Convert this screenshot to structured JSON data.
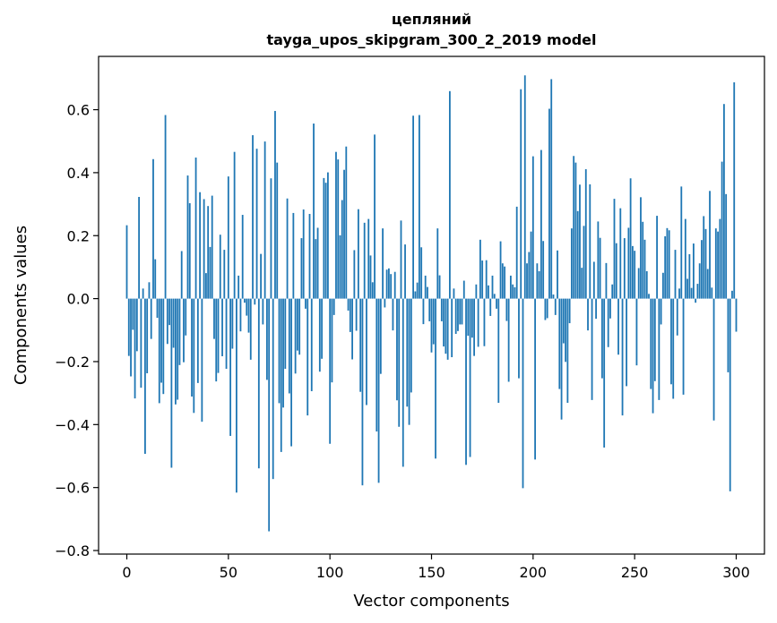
{
  "chart_data": {
    "type": "bar",
    "title": "цепляний",
    "subtitle": "tayga_upos_skipgram_300_2_2019 model",
    "xlabel": "Vector components",
    "ylabel": "Components values",
    "xlim": [
      -13.9,
      313.9
    ],
    "ylim": [
      -0.8113,
      0.7693
    ],
    "xticks": [
      0,
      50,
      100,
      150,
      200,
      250,
      300
    ],
    "yticks": [
      -0.8,
      -0.6,
      -0.4,
      -0.2,
      0.0,
      0.2,
      0.4,
      0.6
    ],
    "ytick_labels": [
      "−0.8",
      "−0.6",
      "−0.4",
      "−0.2",
      "0.0",
      "0.2",
      "0.4",
      "0.6"
    ],
    "bar_color": "#1f77b4",
    "values": [
      0.233,
      -0.182,
      -0.247,
      -0.099,
      -0.317,
      -0.167,
      0.323,
      -0.283,
      0.032,
      -0.493,
      -0.237,
      0.052,
      -0.128,
      0.443,
      0.125,
      -0.061,
      -0.332,
      -0.267,
      -0.303,
      0.583,
      -0.144,
      -0.084,
      -0.537,
      -0.156,
      -0.336,
      -0.321,
      -0.211,
      0.151,
      -0.202,
      -0.117,
      0.391,
      0.303,
      -0.311,
      -0.363,
      0.448,
      -0.268,
      0.338,
      -0.391,
      0.316,
      0.081,
      0.294,
      0.164,
      0.327,
      -0.128,
      -0.263,
      -0.236,
      0.203,
      -0.183,
      0.155,
      -0.223,
      0.388,
      -0.436,
      -0.159,
      0.466,
      -0.616,
      0.073,
      -0.104,
      0.266,
      -0.013,
      -0.054,
      -0.108,
      -0.194,
      0.519,
      -0.019,
      0.476,
      -0.539,
      0.142,
      -0.082,
      0.499,
      -0.258,
      -0.739,
      0.382,
      -0.573,
      0.596,
      0.432,
      -0.332,
      -0.487,
      -0.346,
      -0.223,
      0.318,
      -0.301,
      -0.469,
      0.272,
      -0.238,
      -0.165,
      -0.178,
      0.192,
      0.283,
      -0.032,
      -0.371,
      0.269,
      -0.294,
      0.556,
      0.189,
      0.225,
      -0.232,
      -0.191,
      0.383,
      0.368,
      0.401,
      -0.461,
      -0.266,
      -0.052,
      0.466,
      0.442,
      0.201,
      0.313,
      0.409,
      0.483,
      -0.038,
      -0.106,
      -0.193,
      0.154,
      -0.102,
      0.284,
      -0.296,
      -0.593,
      0.241,
      -0.338,
      0.253,
      0.137,
      0.052,
      0.521,
      -0.422,
      -0.585,
      -0.239,
      0.223,
      -0.028,
      0.092,
      0.096,
      0.078,
      -0.101,
      0.085,
      -0.323,
      -0.407,
      0.248,
      -0.534,
      0.172,
      -0.343,
      -0.401,
      -0.298,
      0.581,
      0.023,
      0.051,
      0.583,
      0.163,
      -0.081,
      0.073,
      0.037,
      -0.072,
      -0.171,
      -0.145,
      -0.508,
      0.223,
      0.074,
      -0.072,
      -0.152,
      -0.175,
      -0.194,
      0.659,
      -0.186,
      0.032,
      -0.112,
      -0.103,
      -0.082,
      -0.082,
      0.057,
      -0.528,
      -0.118,
      -0.503,
      -0.124,
      -0.182,
      0.045,
      -0.153,
      0.187,
      0.121,
      -0.151,
      0.122,
      0.042,
      -0.055,
      0.073,
      0.015,
      -0.032,
      -0.331,
      0.182,
      0.112,
      0.102,
      -0.071,
      -0.264,
      0.073,
      0.045,
      0.036,
      0.292,
      -0.253,
      0.665,
      -0.602,
      0.709,
      0.112,
      0.148,
      0.213,
      0.452,
      -0.511,
      0.112,
      0.087,
      0.472,
      0.183,
      -0.068,
      -0.062,
      0.603,
      0.697,
      0.013,
      -0.052,
      0.153,
      -0.287,
      -0.384,
      -0.142,
      -0.201,
      -0.331,
      -0.078,
      0.223,
      0.453,
      0.432,
      0.278,
      0.362,
      0.098,
      0.231,
      0.411,
      -0.101,
      0.363,
      -0.322,
      0.117,
      -0.064,
      0.245,
      0.193,
      -0.253,
      -0.473,
      0.113,
      -0.154,
      -0.063,
      0.045,
      0.317,
      0.176,
      -0.178,
      0.287,
      -0.371,
      0.192,
      -0.278,
      0.225,
      0.382,
      0.167,
      0.152,
      -0.212,
      0.097,
      0.322,
      0.244,
      0.187,
      0.087,
      0.015,
      -0.287,
      -0.364,
      -0.262,
      0.263,
      -0.322,
      -0.082,
      0.082,
      0.198,
      0.224,
      0.217,
      -0.272,
      -0.318,
      0.155,
      -0.117,
      0.032,
      0.356,
      -0.305,
      0.253,
      0.063,
      0.141,
      0.034,
      0.175,
      -0.013,
      0.047,
      0.112,
      0.186,
      0.262,
      0.221,
      0.094,
      0.342,
      0.035,
      -0.387,
      0.223,
      0.213,
      0.253,
      0.435,
      0.618,
      0.332,
      -0.234,
      -0.612,
      0.025,
      0.687,
      -0.105
    ],
    "grid": false,
    "legend": "none"
  }
}
